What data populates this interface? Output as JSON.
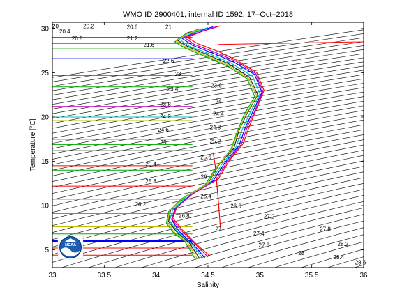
{
  "chart_data": {
    "type": "line",
    "title": "WMO ID 2900401, internal ID 1592, 17–Oct–2018",
    "xlabel": "Salinity",
    "ylabel": "Temperature [°C]",
    "xlim": [
      33,
      36
    ],
    "ylim": [
      3,
      30.7
    ],
    "xticks": [
      "33",
      "33.5",
      "34",
      "34.5",
      "35",
      "35.5",
      "36"
    ],
    "yticks": [
      "5",
      "10",
      "15",
      "20",
      "25",
      "30"
    ],
    "grid": false,
    "isopycnal_labels": [
      {
        "t": "20",
        "s": 33.03,
        "T": 30.2
      },
      {
        "t": "20.2",
        "s": 33.35,
        "T": 30.2
      },
      {
        "t": "20.4",
        "s": 33.12,
        "T": 29.6
      },
      {
        "t": "20.6",
        "s": 33.77,
        "T": 30.1
      },
      {
        "t": "20.8",
        "s": 33.24,
        "T": 28.8
      },
      {
        "t": "21",
        "s": 34.12,
        "T": 30.1
      },
      {
        "t": "21.2",
        "s": 33.77,
        "T": 28.8
      },
      {
        "t": "21.6",
        "s": 33.93,
        "T": 28.1
      },
      {
        "t": "22.6",
        "s": 34.12,
        "T": 26.3
      },
      {
        "t": "23",
        "s": 34.21,
        "T": 24.8
      },
      {
        "t": "23.4",
        "s": 34.16,
        "T": 23.1
      },
      {
        "t": "23.6",
        "s": 34.58,
        "T": 23.5
      },
      {
        "t": "23.8",
        "s": 34.09,
        "T": 21.4
      },
      {
        "t": "24",
        "s": 34.6,
        "T": 21.7
      },
      {
        "t": "24.2",
        "s": 34.09,
        "T": 20.0
      },
      {
        "t": "24.4",
        "s": 34.6,
        "T": 20.3
      },
      {
        "t": "24.6",
        "s": 34.07,
        "T": 18.5
      },
      {
        "t": "24.8",
        "s": 34.57,
        "T": 18.8
      },
      {
        "t": "25",
        "s": 34.07,
        "T": 17.1
      },
      {
        "t": "25.2",
        "s": 34.57,
        "T": 17.2
      },
      {
        "t": "25.4",
        "s": 33.95,
        "T": 14.6
      },
      {
        "t": "25.6",
        "s": 34.48,
        "T": 15.4
      },
      {
        "t": "25.8",
        "s": 33.95,
        "T": 12.7
      },
      {
        "t": "26",
        "s": 34.46,
        "T": 13.2
      },
      {
        "t": "26.2",
        "s": 33.85,
        "T": 10.1
      },
      {
        "t": "26.4",
        "s": 34.48,
        "T": 11.0
      },
      {
        "t": "26.6",
        "s": 34.77,
        "T": 9.9
      },
      {
        "t": "26.8",
        "s": 34.27,
        "T": 8.8
      },
      {
        "t": "27",
        "s": 34.6,
        "T": 7.3
      },
      {
        "t": "27.2",
        "s": 35.09,
        "T": 8.7
      },
      {
        "t": "27.4",
        "s": 34.99,
        "T": 6.8
      },
      {
        "t": "27.6",
        "s": 35.04,
        "T": 5.5
      },
      {
        "t": "27.8",
        "s": 35.63,
        "T": 7.3
      },
      {
        "t": "28",
        "s": 35.4,
        "T": 4.6
      },
      {
        "t": "28.2",
        "s": 35.8,
        "T": 5.6
      },
      {
        "t": "28.4",
        "s": 35.76,
        "T": 4.1
      },
      {
        "t": "28.6",
        "s": 35.97,
        "T": 3.5
      }
    ],
    "annotations": {
      "logo_text": "NOAA"
    },
    "series": [
      {
        "color": "#2b2b2b",
        "x": [
          34.42,
          34.32,
          34.2,
          34.12,
          34.14,
          34.28,
          34.5,
          34.6,
          34.75,
          34.8,
          34.88,
          34.98,
          34.9,
          34.7,
          34.5,
          34.3,
          34.2,
          34.3,
          34.45
        ],
        "y": [
          4.0,
          5.8,
          7.0,
          8.2,
          9.5,
          11.0,
          12.5,
          14.5,
          16.5,
          18.5,
          20.5,
          22.5,
          24.5,
          26.0,
          27.0,
          28.0,
          28.7,
          29.5,
          30.0
        ]
      },
      {
        "color": "#0000ff",
        "x": [
          34.47,
          34.36,
          34.22,
          34.15,
          34.18,
          34.33,
          34.55,
          34.66,
          34.8,
          34.86,
          34.94,
          35.02,
          34.95,
          34.75,
          34.55,
          34.35,
          34.25,
          34.38,
          34.55
        ],
        "y": [
          4.1,
          5.6,
          7.1,
          8.4,
          9.6,
          11.2,
          12.8,
          14.8,
          16.8,
          18.8,
          20.8,
          22.8,
          24.8,
          26.2,
          27.2,
          28.1,
          28.9,
          29.6,
          30.2
        ]
      },
      {
        "color": "#ff0000",
        "x": [
          34.52,
          34.4,
          34.25,
          34.16,
          34.2,
          34.36,
          34.6,
          34.7,
          34.84,
          34.9,
          34.97,
          35.04,
          34.97,
          34.78,
          34.6,
          34.4,
          34.3,
          34.45,
          34.62
        ],
        "y": [
          4.3,
          5.5,
          7.3,
          8.6,
          9.8,
          11.4,
          13.0,
          15.0,
          17.0,
          19.0,
          21.0,
          23.0,
          25.0,
          26.4,
          27.4,
          28.3,
          29.0,
          29.7,
          30.3
        ]
      },
      {
        "color": "#00aa00",
        "x": [
          34.38,
          34.28,
          34.17,
          34.1,
          34.12,
          34.25,
          34.47,
          34.58,
          34.72,
          34.78,
          34.85,
          34.95,
          34.88,
          34.68,
          34.48,
          34.28,
          34.18,
          34.28,
          34.4
        ],
        "y": [
          3.9,
          5.9,
          6.9,
          8.0,
          9.3,
          10.8,
          12.3,
          14.3,
          16.3,
          18.3,
          20.3,
          22.3,
          24.3,
          25.8,
          26.8,
          27.8,
          28.5,
          29.3,
          29.9
        ]
      },
      {
        "color": "#00bfbf",
        "x": [
          34.45,
          34.34,
          34.21,
          34.13,
          34.16,
          34.3,
          34.52,
          34.63,
          34.77,
          34.83,
          34.91,
          35.0,
          34.93,
          34.72,
          34.52,
          34.32,
          34.22,
          34.35,
          34.5
        ],
        "y": [
          4.0,
          5.7,
          7.0,
          8.3,
          9.5,
          11.1,
          12.6,
          14.6,
          16.6,
          18.6,
          20.6,
          22.6,
          24.6,
          26.1,
          27.1,
          28.0,
          28.8,
          29.5,
          30.1
        ]
      },
      {
        "color": "#bf00bf",
        "x": [
          34.5,
          34.38,
          34.24,
          34.15,
          34.19,
          34.35,
          34.58,
          34.68,
          34.82,
          34.88,
          34.96,
          35.03,
          34.96,
          34.77,
          34.57,
          34.37,
          34.27,
          34.42,
          34.58
        ],
        "y": [
          4.2,
          5.6,
          7.2,
          8.5,
          9.7,
          11.3,
          12.9,
          14.9,
          16.9,
          18.9,
          20.9,
          22.9,
          24.9,
          26.3,
          27.3,
          28.2,
          29.0,
          29.6,
          30.2
        ]
      },
      {
        "color": "#bfbf00",
        "x": [
          34.4,
          34.3,
          34.18,
          34.11,
          34.13,
          34.27,
          34.49,
          34.59,
          34.73,
          34.79,
          34.87,
          34.97,
          34.89,
          34.69,
          34.49,
          34.29,
          34.19,
          34.3,
          34.43
        ],
        "y": [
          3.95,
          5.85,
          6.95,
          8.1,
          9.4,
          10.9,
          12.4,
          14.4,
          16.4,
          18.4,
          20.4,
          22.4,
          24.4,
          25.9,
          26.9,
          27.9,
          28.6,
          29.4,
          29.95
        ]
      },
      {
        "color": "#ff0000",
        "x": [
          34.62,
          34.6,
          34.57,
          34.55
        ],
        "y": [
          7.5,
          10.5,
          14.5,
          16.0
        ]
      }
    ]
  }
}
